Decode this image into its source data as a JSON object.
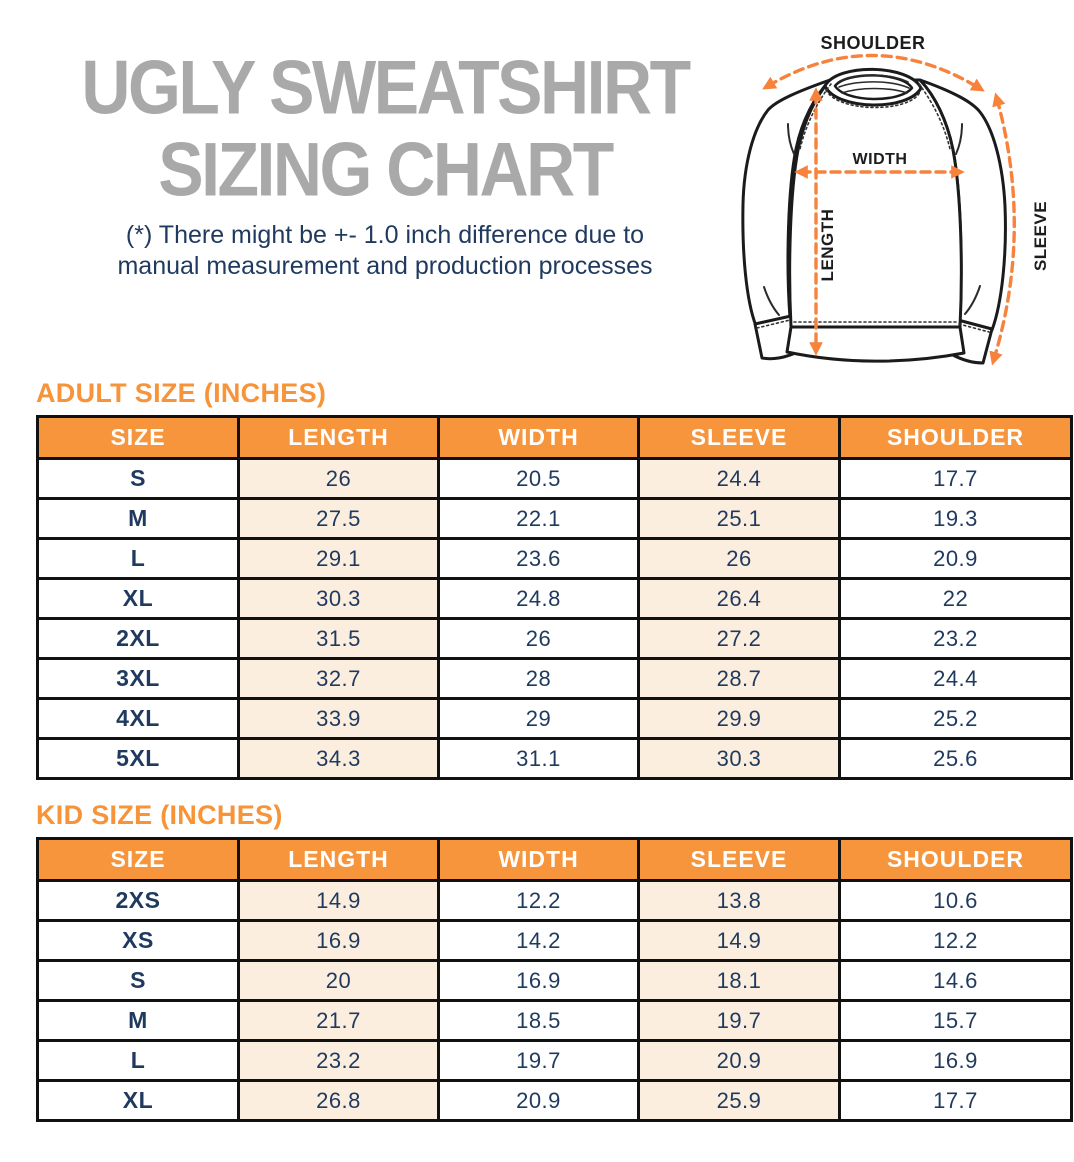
{
  "title": {
    "line1": "UGLY SWEATSHIRT",
    "line2": "SIZING CHART"
  },
  "note": {
    "line1": "(*) There might be +- 1.0 inch difference due to",
    "line2": "manual measurement and production processes"
  },
  "diagram": {
    "labels": {
      "shoulder": "SHOULDER",
      "width": "WIDTH",
      "length": "LENGTH",
      "sleeve": "SLEEVE"
    }
  },
  "colors": {
    "accent_orange": "#F7953D",
    "heading_orange": "#F79338",
    "arrow_orange": "#F6823C",
    "row_peach": "#FCEEDF",
    "text_navy": "#1F3A5E",
    "title_gray": "#A9A9A9",
    "table_border": "#111111"
  },
  "adult_table": {
    "heading": "ADULT SIZE (INCHES)",
    "columns": [
      "SIZE",
      "LENGTH",
      "WIDTH",
      "SLEEVE",
      "SHOULDER"
    ],
    "rows": [
      [
        "S",
        "26",
        "20.5",
        "24.4",
        "17.7"
      ],
      [
        "M",
        "27.5",
        "22.1",
        "25.1",
        "19.3"
      ],
      [
        "L",
        "29.1",
        "23.6",
        "26",
        "20.9"
      ],
      [
        "XL",
        "30.3",
        "24.8",
        "26.4",
        "22"
      ],
      [
        "2XL",
        "31.5",
        "26",
        "27.2",
        "23.2"
      ],
      [
        "3XL",
        "32.7",
        "28",
        "28.7",
        "24.4"
      ],
      [
        "4XL",
        "33.9",
        "29",
        "29.9",
        "25.2"
      ],
      [
        "5XL",
        "34.3",
        "31.1",
        "30.3",
        "25.6"
      ]
    ]
  },
  "kid_table": {
    "heading": "KID SIZE (INCHES)",
    "columns": [
      "SIZE",
      "LENGTH",
      "WIDTH",
      "SLEEVE",
      "SHOULDER"
    ],
    "rows": [
      [
        "2XS",
        "14.9",
        "12.2",
        "13.8",
        "10.6"
      ],
      [
        "XS",
        "16.9",
        "14.2",
        "14.9",
        "12.2"
      ],
      [
        "S",
        "20",
        "16.9",
        "18.1",
        "14.6"
      ],
      [
        "M",
        "21.7",
        "18.5",
        "19.7",
        "15.7"
      ],
      [
        "L",
        "23.2",
        "19.7",
        "20.9",
        "16.9"
      ],
      [
        "XL",
        "26.8",
        "20.9",
        "25.9",
        "17.7"
      ]
    ]
  }
}
